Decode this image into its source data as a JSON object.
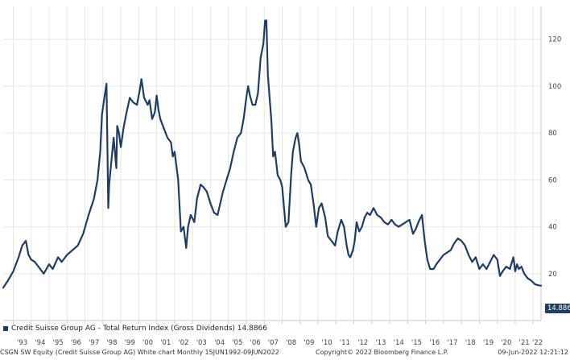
{
  "chart_data": {
    "type": "line",
    "title": "",
    "xlabel": "",
    "ylabel": "",
    "ylim": [
      0,
      134
    ],
    "xlim": [
      1992.44,
      2022.44
    ],
    "yticks": [
      20,
      40,
      60,
      80,
      100,
      120
    ],
    "xticks": [
      "'93",
      "'94",
      "'95",
      "'96",
      "'97",
      "'98",
      "'99",
      "'00",
      "'01",
      "'02",
      "'03",
      "'04",
      "'05",
      "'06",
      "'07",
      "'08",
      "'09",
      "'10",
      "'11",
      "'12",
      "'13",
      "'14",
      "'15",
      "'16",
      "'17",
      "'18",
      "'19",
      "'20",
      "'21",
      "'22"
    ],
    "grid": true,
    "legend_position": "bottom-left",
    "series": [
      {
        "name": "Credit Suisse Group AG - Total Return Index (Gross Dividends)",
        "last_value_label": "14.8866",
        "x": [
          1992.44,
          1992.7,
          1993.0,
          1993.3,
          1993.5,
          1993.7,
          1993.85,
          1994.0,
          1994.2,
          1994.5,
          1994.7,
          1995.0,
          1995.2,
          1995.5,
          1995.7,
          1996.0,
          1996.3,
          1996.6,
          1996.9,
          1997.2,
          1997.5,
          1997.7,
          1997.85,
          1997.95,
          1998.1,
          1998.2,
          1998.3,
          1998.35,
          1998.5,
          1998.6,
          1998.75,
          1998.8,
          1998.9,
          1999.0,
          1999.15,
          1999.3,
          1999.5,
          1999.7,
          1999.9,
          2000.05,
          2000.15,
          2000.3,
          2000.5,
          2000.6,
          2000.75,
          2000.9,
          2001.0,
          2001.1,
          2001.2,
          2001.4,
          2001.6,
          2001.8,
          2001.9,
          2002.0,
          2002.2,
          2002.35,
          2002.5,
          2002.65,
          2002.75,
          2002.9,
          2003.1,
          2003.25,
          2003.45,
          2003.6,
          2003.8,
          2004.0,
          2004.2,
          2004.4,
          2004.55,
          2004.7,
          2004.9,
          2005.1,
          2005.3,
          2005.5,
          2005.7,
          2005.85,
          2006.0,
          2006.1,
          2006.2,
          2006.35,
          2006.5,
          2006.65,
          2006.8,
          2006.95,
          2007.05,
          2007.12,
          2007.2,
          2007.3,
          2007.4,
          2007.5,
          2007.6,
          2007.75,
          2007.9,
          2008.0,
          2008.2,
          2008.35,
          2008.5,
          2008.6,
          2008.75,
          2008.85,
          2008.95,
          2009.05,
          2009.25,
          2009.45,
          2009.6,
          2009.75,
          2009.9,
          2010.05,
          2010.2,
          2010.4,
          2010.55,
          2010.75,
          2010.95,
          2011.1,
          2011.3,
          2011.45,
          2011.6,
          2011.7,
          2011.8,
          2011.95,
          2012.05,
          2012.15,
          2012.3,
          2012.45,
          2012.6,
          2012.75,
          2012.9,
          2013.1,
          2013.3,
          2013.5,
          2013.7,
          2013.9,
          2014.1,
          2014.3,
          2014.5,
          2014.7,
          2014.9,
          2015.1,
          2015.3,
          2015.45,
          2015.6,
          2015.8,
          2015.95,
          2016.1,
          2016.25,
          2016.45,
          2016.6,
          2016.8,
          2017.0,
          2017.2,
          2017.4,
          2017.6,
          2017.8,
          2018.0,
          2018.2,
          2018.4,
          2018.6,
          2018.8,
          2019.0,
          2019.2,
          2019.4,
          2019.6,
          2019.8,
          2020.0,
          2020.15,
          2020.3,
          2020.5,
          2020.7,
          2020.9,
          2021.0,
          2021.1,
          2021.2,
          2021.35,
          2021.5,
          2021.7,
          2021.9,
          2022.1,
          2022.3,
          2022.44
        ],
        "y": [
          14,
          17,
          21,
          27,
          32,
          34,
          28,
          26,
          25,
          22,
          20,
          24,
          22,
          27,
          25,
          28,
          30,
          32,
          37,
          45,
          52,
          60,
          72,
          88,
          96,
          101,
          48,
          58,
          70,
          78,
          65,
          83,
          80,
          74,
          82,
          88,
          95,
          93,
          92,
          98,
          103,
          95,
          92,
          94,
          86,
          89,
          96,
          90,
          86,
          82,
          78,
          76,
          70,
          72,
          60,
          38,
          40,
          31,
          40,
          45,
          42,
          52,
          58,
          57,
          55,
          50,
          46,
          45,
          50,
          55,
          60,
          65,
          72,
          78,
          80,
          86,
          95,
          100,
          96,
          92,
          92,
          97,
          112,
          118,
          128,
          128,
          105,
          95,
          85,
          70,
          72,
          62,
          60,
          57,
          40,
          42,
          62,
          72,
          78,
          80,
          75,
          68,
          65,
          60,
          58,
          50,
          40,
          48,
          50,
          44,
          36,
          34,
          32,
          38,
          43,
          40,
          32,
          28,
          27,
          30,
          34,
          42,
          38,
          40,
          44,
          46,
          45,
          48,
          45,
          44,
          42,
          41,
          43,
          41,
          40,
          41,
          42,
          43,
          37,
          39,
          42,
          45,
          34,
          26,
          22,
          22,
          24,
          26,
          28,
          29,
          30,
          33,
          35,
          34,
          32,
          28,
          25,
          27,
          22,
          24,
          22,
          25,
          28,
          26,
          19,
          21,
          23,
          22,
          27,
          21,
          24,
          22,
          23,
          20,
          18,
          17,
          15.5,
          15,
          14.8866
        ]
      }
    ]
  },
  "legend": {
    "label": "Credit Suisse Group AG - Total Return Index (Gross Dividends) 14.8866"
  },
  "footer": {
    "left": "CSGN SW Equity (Credit Suisse Group AG) White chart  Monthly 15JUN1992-09JUN2022",
    "center": "Copyright© 2022 Bloomberg Finance L.P.",
    "right": "09-Jun-2022 12:21:12"
  },
  "colors": {
    "line": "#1f3d63",
    "grid": "#e6e6e6",
    "axis": "#c8c8c8"
  }
}
